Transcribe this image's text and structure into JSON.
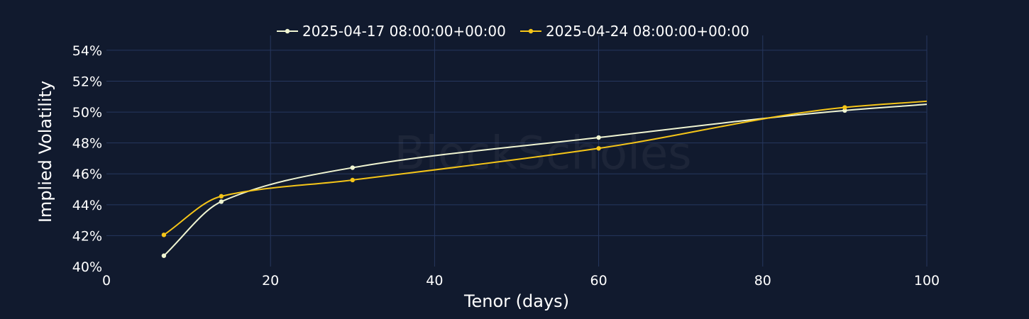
{
  "watermark": "BlockScholes",
  "chart_data": {
    "type": "line",
    "title": "",
    "xlabel": "Tenor (days)",
    "ylabel": "Implied Volatility",
    "xlim": [
      0,
      100
    ],
    "ylim": [
      40,
      54.5
    ],
    "x_ticks": [
      0,
      20,
      40,
      60,
      80,
      100
    ],
    "y_ticks": [
      40,
      42,
      44,
      46,
      48,
      50,
      52,
      54
    ],
    "y_tick_suffix": "%",
    "grid": true,
    "legend_position": "top-center",
    "series": [
      {
        "name": "2025-04-17 08:00:00+00:00",
        "color": "#f0f5d2",
        "points": [
          [
            7,
            40.7
          ],
          [
            14,
            44.2
          ],
          [
            30,
            46.4
          ],
          [
            60,
            48.35
          ],
          [
            90,
            50.1
          ]
        ],
        "curve_end": [
          100,
          50.5
        ]
      },
      {
        "name": "2025-04-24 08:00:00+00:00",
        "color": "#f5c518",
        "points": [
          [
            7,
            42.05
          ],
          [
            14,
            44.55
          ],
          [
            30,
            45.6
          ],
          [
            60,
            47.65
          ],
          [
            90,
            50.3
          ]
        ],
        "curve_end": [
          100,
          50.7
        ]
      }
    ]
  }
}
